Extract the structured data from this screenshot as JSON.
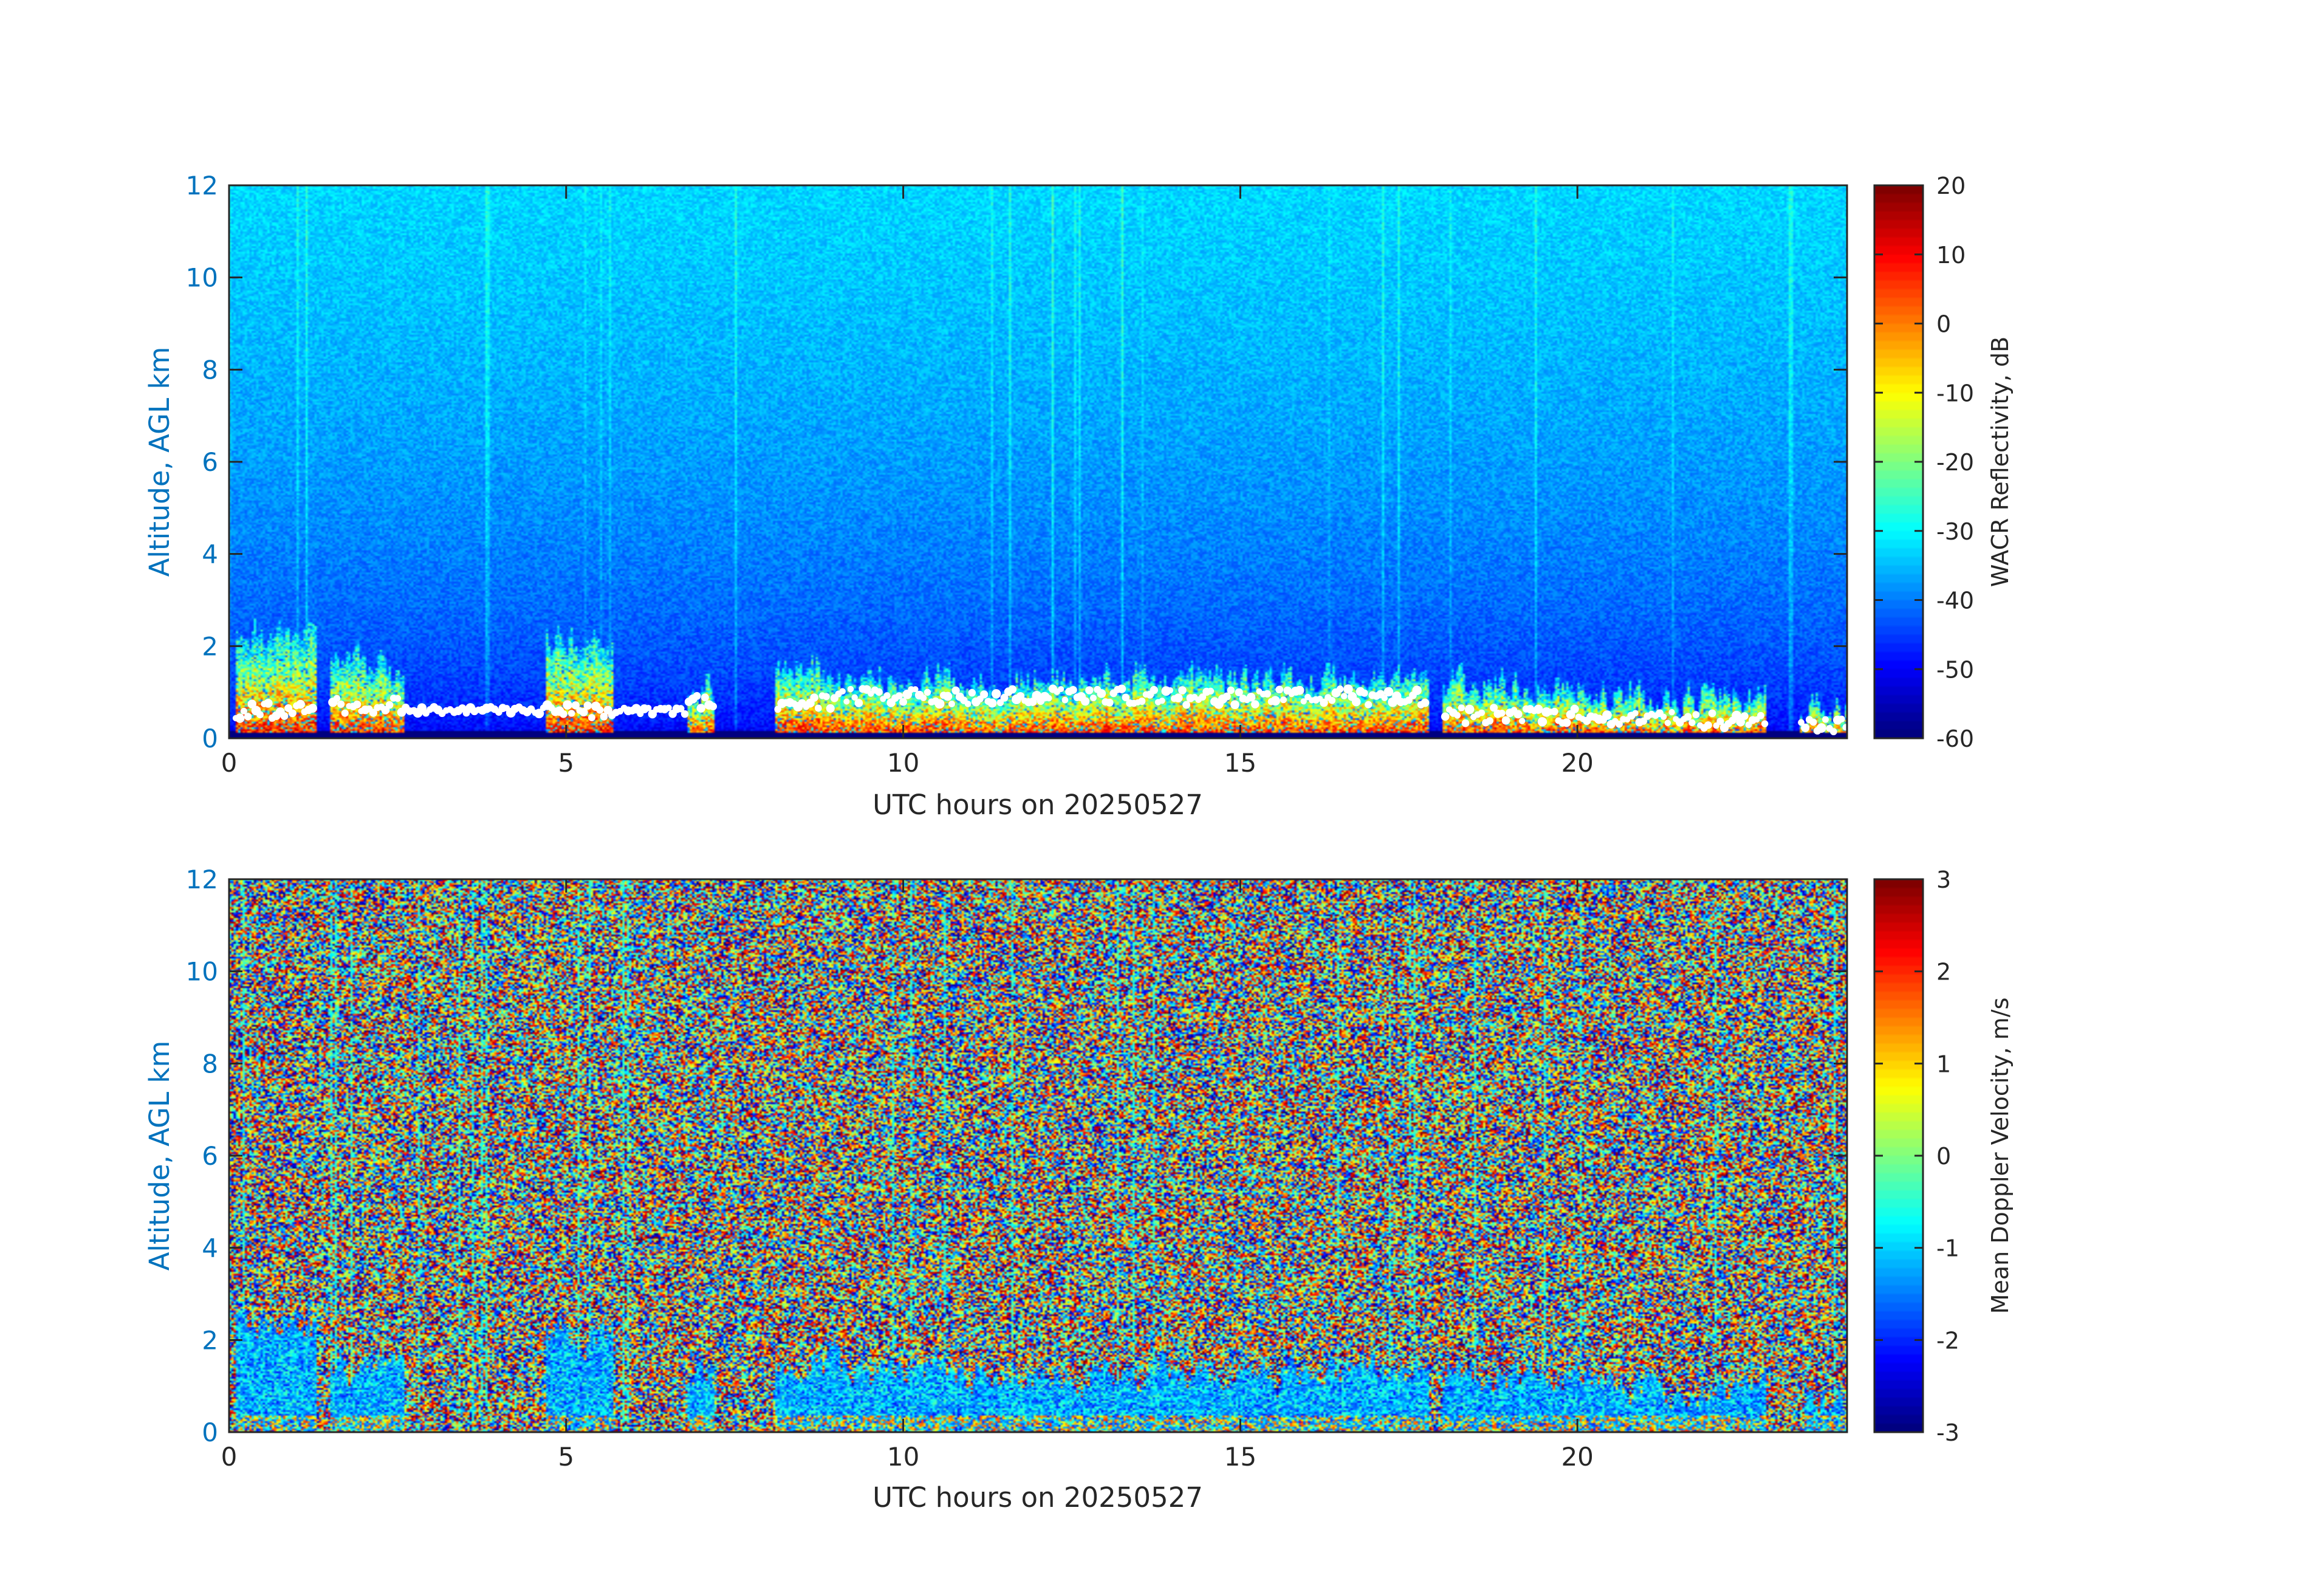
{
  "chart_data": [
    {
      "type": "heatmap",
      "title": "",
      "xlabel": "UTC hours on 20250527",
      "ylabel": "Altitude, AGL km",
      "xlim": [
        0,
        24
      ],
      "ylim": [
        0,
        12
      ],
      "xticks": [
        0,
        5,
        10,
        15,
        20
      ],
      "yticks": [
        0,
        2,
        4,
        6,
        8,
        10,
        12
      ],
      "colorbar": {
        "label": "WACR Reflectivity, dB",
        "range": [
          -60,
          20
        ],
        "ticks": [
          20,
          10,
          0,
          -10,
          -20,
          -30,
          -40,
          -50,
          -60
        ],
        "colormap": "jet"
      },
      "field": "reflectivity",
      "background": {
        "surface_dB": -55,
        "top_dB": -33
      },
      "cloud_layers": [
        {
          "t_start": 0.1,
          "t_end": 1.3,
          "top_km": 2.3,
          "base_km": 0.6
        },
        {
          "t_start": 1.5,
          "t_end": 2.6,
          "top_km": 1.5,
          "base_km": 0.7
        },
        {
          "t_start": 4.7,
          "t_end": 5.7,
          "top_km": 2.1,
          "base_km": 0.6
        },
        {
          "t_start": 6.8,
          "t_end": 7.2,
          "top_km": 1.2,
          "base_km": 0.8
        },
        {
          "t_start": 8.1,
          "t_end": 9.0,
          "top_km": 1.6,
          "base_km": 0.8
        },
        {
          "t_start": 9.0,
          "t_end": 13.5,
          "top_km": 1.3,
          "base_km": 0.9
        },
        {
          "t_start": 13.5,
          "t_end": 17.8,
          "top_km": 1.3,
          "base_km": 0.9
        },
        {
          "t_start": 18.0,
          "t_end": 20.2,
          "top_km": 1.2,
          "base_km": 0.5
        },
        {
          "t_start": 20.2,
          "t_end": 22.8,
          "top_km": 0.9,
          "base_km": 0.4
        },
        {
          "t_start": 23.3,
          "t_end": 24.0,
          "top_km": 0.6,
          "base_km": 0.3
        }
      ]
    },
    {
      "type": "heatmap",
      "title": "",
      "xlabel": "UTC hours on 20250527",
      "ylabel": "Altitude, AGL km",
      "xlim": [
        0,
        24
      ],
      "ylim": [
        0,
        12
      ],
      "xticks": [
        0,
        5,
        10,
        15,
        20
      ],
      "yticks": [
        0,
        2,
        4,
        6,
        8,
        10,
        12
      ],
      "colorbar": {
        "label": "Mean Doppler Velocity, m/s",
        "range": [
          -3,
          3
        ],
        "ticks": [
          3,
          2,
          1,
          0,
          -1,
          -2,
          -3
        ],
        "colormap": "jet"
      },
      "field": "velocity",
      "background": "noise",
      "cloud_layers": [
        {
          "t_start": 0.1,
          "t_end": 1.3,
          "top_km": 2.3,
          "base_km": 0.0
        },
        {
          "t_start": 1.5,
          "t_end": 2.6,
          "top_km": 1.5,
          "base_km": 0.0
        },
        {
          "t_start": 4.7,
          "t_end": 5.7,
          "top_km": 2.1,
          "base_km": 0.0
        },
        {
          "t_start": 6.8,
          "t_end": 7.2,
          "top_km": 1.2,
          "base_km": 0.0
        },
        {
          "t_start": 8.1,
          "t_end": 9.0,
          "top_km": 1.6,
          "base_km": 0.0
        },
        {
          "t_start": 9.0,
          "t_end": 13.5,
          "top_km": 1.3,
          "base_km": 0.0
        },
        {
          "t_start": 13.5,
          "t_end": 17.8,
          "top_km": 1.3,
          "base_km": 0.0
        },
        {
          "t_start": 18.0,
          "t_end": 20.2,
          "top_km": 1.2,
          "base_km": 0.0
        },
        {
          "t_start": 20.2,
          "t_end": 22.8,
          "top_km": 0.9,
          "base_km": 0.0
        },
        {
          "t_start": 23.3,
          "t_end": 24.0,
          "top_km": 0.6,
          "base_km": 0.0
        }
      ]
    }
  ],
  "colors": {
    "axis_label": "#0072BD",
    "tick_text": "#262626",
    "axis_line": "#262626",
    "cloud_base_marker": "#ffffff"
  }
}
